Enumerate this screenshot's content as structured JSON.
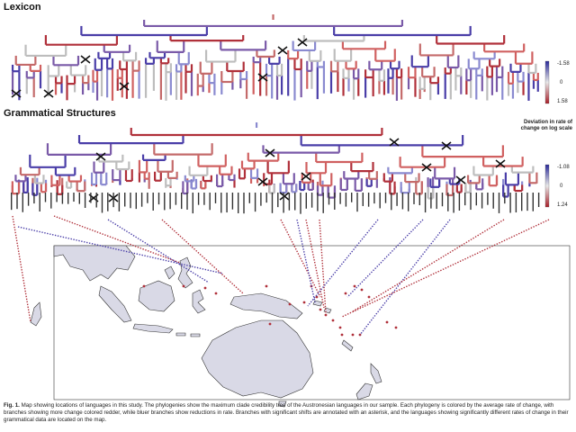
{
  "figure": {
    "lexicon_title": "Lexicon",
    "grammar_title": "Grammatical Structures",
    "deviation_label_line1": "Deviation in rate of",
    "deviation_label_line2": "change on log scale",
    "lexicon_scale": {
      "top": "-1.58",
      "mid": "0",
      "bottom": "1.58"
    },
    "grammar_scale": {
      "top": "-1.08",
      "mid": "0",
      "bottom": "1.24"
    },
    "colors": {
      "red": "#b0303a",
      "blue": "#4a3ea8",
      "grey": "#bdbdbd",
      "land": "#d9d9e6",
      "coast": "#333333"
    },
    "caption": {
      "fig_label": "Fig. 1.",
      "text": "Map showing locations of languages in this study. The phylogenies show the maximum clade credibility tree of the Austronesian languages in our sample. Each phylogeny is colored by the average rate of change, with branches showing more change colored redder, while bluer branches show reductions in rate. Branches with significant shifts are annotated with an asterisk, and the languages showing significantly different rates of change in their grammatical data are located on the map."
    }
  }
}
